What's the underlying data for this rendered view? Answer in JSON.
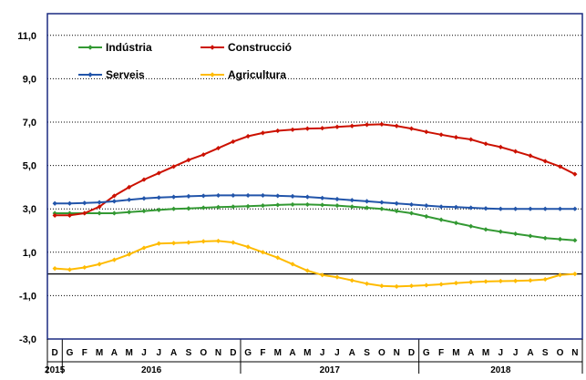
{
  "chart_data": {
    "type": "line",
    "ylim": [
      -3,
      12
    ],
    "yticks": [
      "11,0",
      "9,0",
      "7,0",
      "5,0",
      "3,0",
      "1,0",
      "-1,0",
      "-3,0"
    ],
    "ytick_values": [
      11,
      9,
      7,
      5,
      3,
      1,
      -1,
      -3
    ],
    "x": [
      "D",
      "G",
      "F",
      "M",
      "A",
      "M",
      "J",
      "J",
      "A",
      "S",
      "O",
      "N",
      "D",
      "G",
      "F",
      "M",
      "A",
      "M",
      "J",
      "J",
      "A",
      "S",
      "O",
      "N",
      "D",
      "G",
      "F",
      "M",
      "A",
      "M",
      "J",
      "J",
      "A",
      "S",
      "O",
      "N"
    ],
    "years": [
      {
        "label": "2015",
        "start": 0,
        "end": 0
      },
      {
        "label": "2016",
        "start": 1,
        "end": 12
      },
      {
        "label": "2017",
        "start": 13,
        "end": 24
      },
      {
        "label": "2018",
        "start": 25,
        "end": 35
      }
    ],
    "grid": true,
    "legend_position": "top-left",
    "series": [
      {
        "name": "Indústria",
        "color": "#339933",
        "values": [
          2.8,
          2.8,
          2.8,
          2.8,
          2.8,
          2.85,
          2.9,
          2.95,
          3.0,
          3.02,
          3.05,
          3.08,
          3.1,
          3.12,
          3.15,
          3.18,
          3.2,
          3.2,
          3.18,
          3.15,
          3.1,
          3.05,
          3.0,
          2.9,
          2.8,
          2.65,
          2.5,
          2.35,
          2.2,
          2.05,
          1.95,
          1.85,
          1.75,
          1.65,
          1.6,
          1.55
        ]
      },
      {
        "name": "Construcció",
        "color": "#cc1100",
        "values": [
          2.7,
          2.7,
          2.8,
          3.1,
          3.6,
          4.0,
          4.35,
          4.65,
          4.95,
          5.25,
          5.5,
          5.8,
          6.1,
          6.35,
          6.5,
          6.6,
          6.65,
          6.7,
          6.72,
          6.78,
          6.82,
          6.88,
          6.9,
          6.82,
          6.7,
          6.55,
          6.42,
          6.3,
          6.2,
          6.0,
          5.85,
          5.65,
          5.45,
          5.2,
          4.95,
          4.6
        ]
      },
      {
        "name": "Serveis",
        "color": "#2255aa",
        "values": [
          3.25,
          3.25,
          3.27,
          3.3,
          3.35,
          3.42,
          3.48,
          3.52,
          3.55,
          3.58,
          3.6,
          3.62,
          3.62,
          3.62,
          3.62,
          3.6,
          3.58,
          3.55,
          3.5,
          3.45,
          3.4,
          3.35,
          3.3,
          3.25,
          3.2,
          3.15,
          3.1,
          3.08,
          3.05,
          3.02,
          3.0,
          3.0,
          3.0,
          3.0,
          3.0,
          3.0
        ]
      },
      {
        "name": "Agricultura",
        "color": "#ffbb00",
        "values": [
          0.25,
          0.2,
          0.3,
          0.45,
          0.65,
          0.9,
          1.2,
          1.4,
          1.42,
          1.45,
          1.5,
          1.52,
          1.45,
          1.25,
          1.0,
          0.75,
          0.45,
          0.15,
          -0.05,
          -0.15,
          -0.3,
          -0.45,
          -0.55,
          -0.58,
          -0.55,
          -0.52,
          -0.48,
          -0.42,
          -0.38,
          -0.35,
          -0.33,
          -0.32,
          -0.3,
          -0.25,
          -0.05,
          0.0
        ]
      }
    ]
  }
}
